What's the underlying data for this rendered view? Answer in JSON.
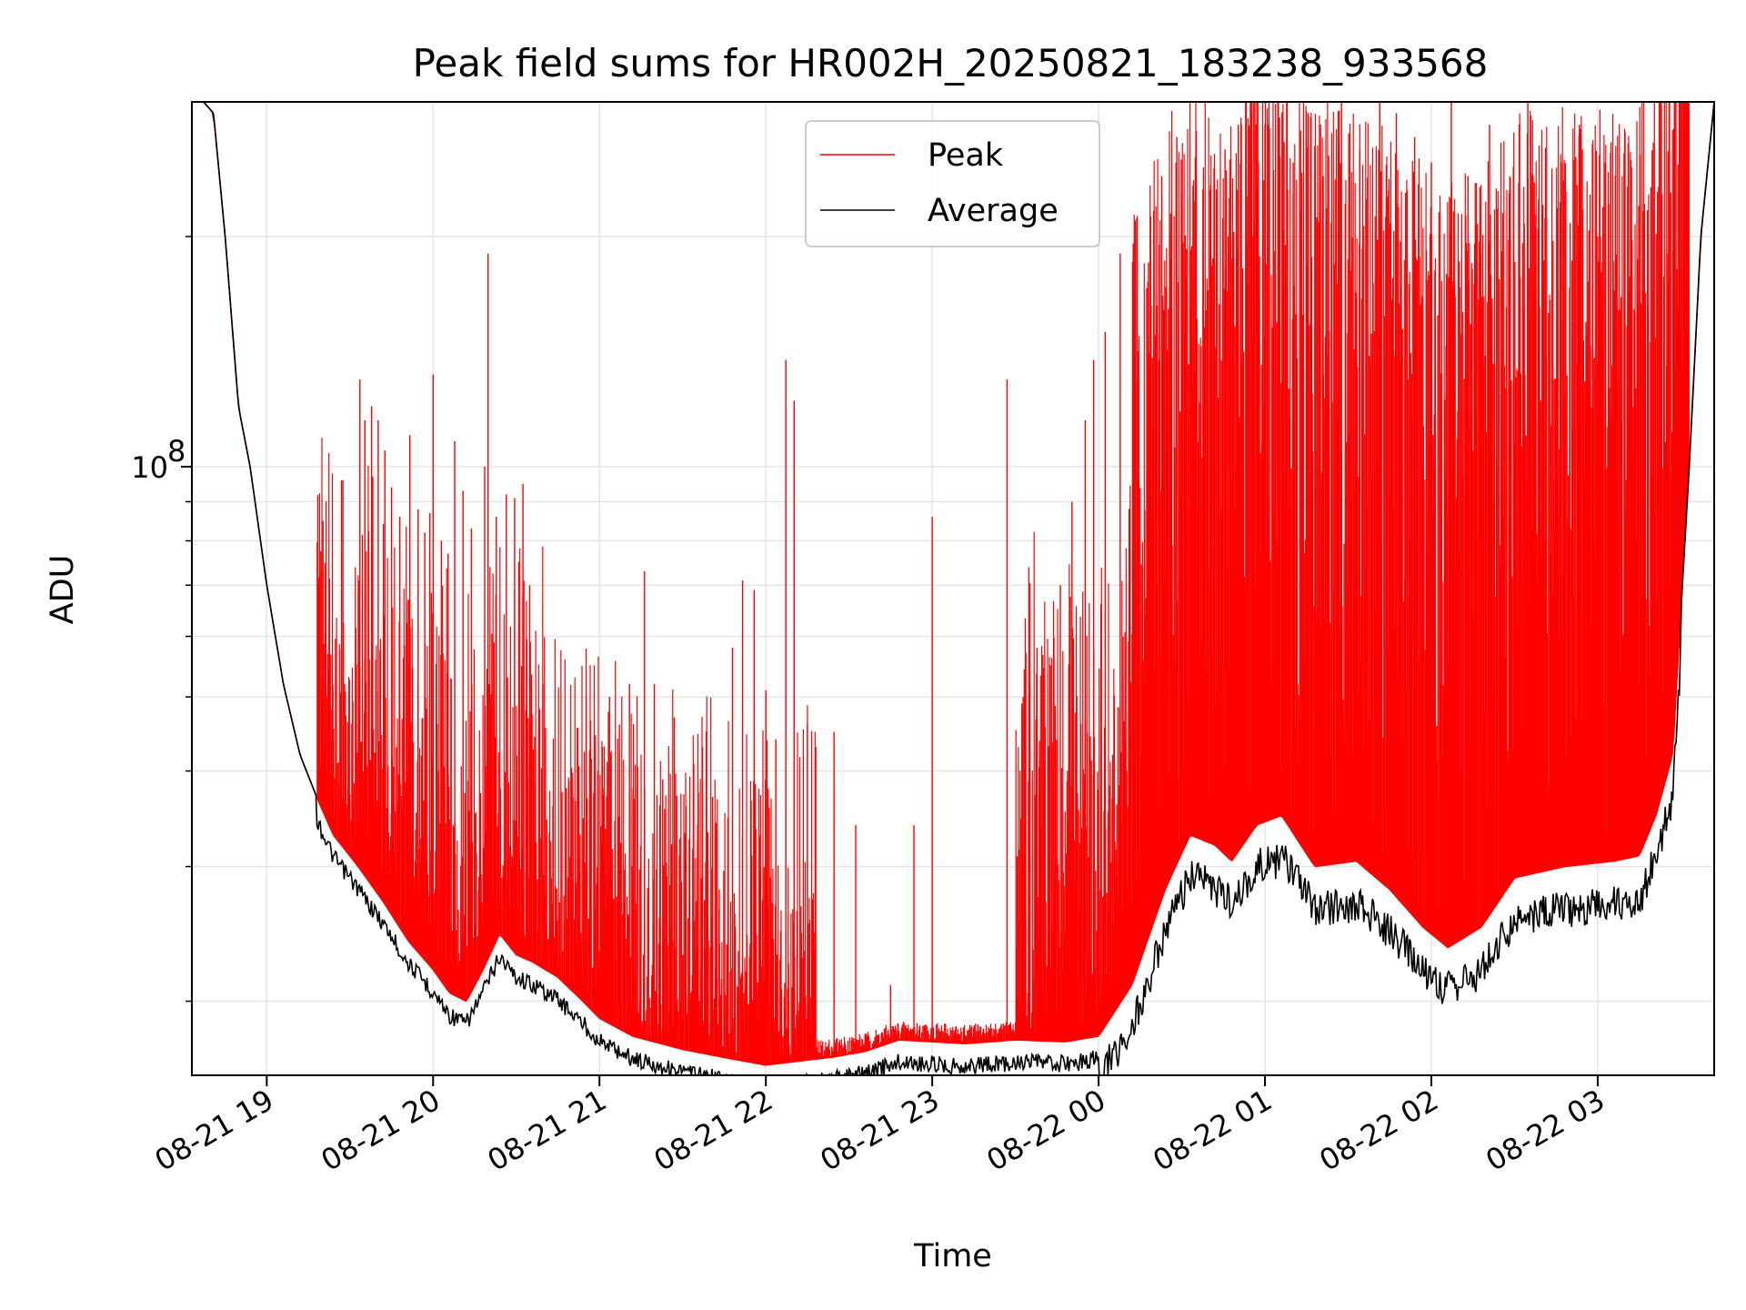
{
  "chart_data": {
    "type": "line",
    "title": "Peak field sums for HR002H_20250821_183238_933568",
    "xlabel": "Time",
    "ylabel": "ADU",
    "yscale": "log",
    "grid": true,
    "legend_placement": "upper center",
    "x_ticks": [
      "08-21 19",
      "08-21 20",
      "08-21 21",
      "08-21 22",
      "08-21 23",
      "08-22 00",
      "08-22 01",
      "08-22 02",
      "08-22 03"
    ],
    "y_ticks": [
      {
        "label": "10",
        "exponent": "8"
      }
    ],
    "series": [
      {
        "name": "Peak",
        "color": "#ff0000",
        "baseline_hours": [
          18.55,
          18.62,
          18.68,
          18.75,
          18.83,
          18.9,
          19.0,
          19.1,
          19.2,
          19.3,
          19.4,
          19.55,
          19.7,
          19.85,
          20.0,
          20.1,
          20.2,
          20.3,
          20.4,
          20.5,
          20.6,
          20.75,
          20.9,
          21.0,
          21.2,
          21.5,
          21.8,
          22.0,
          22.2,
          22.4,
          22.6,
          22.8,
          23.0,
          23.2,
          23.5,
          23.8,
          24.0,
          24.2,
          24.4,
          24.55,
          24.7,
          24.8,
          24.95,
          25.1,
          25.3,
          25.55,
          25.75,
          25.95,
          26.1,
          26.3,
          26.5,
          26.8,
          27.1,
          27.25,
          27.35,
          27.45,
          27.55,
          27.62,
          27.7
        ],
        "baseline_values": [
          300000000,
          300000000,
          290000000,
          200000000,
          120000000,
          100000000,
          70000000,
          52000000,
          42000000,
          37000000,
          33000000,
          30000000,
          27000000,
          24000000,
          22000000,
          20500000,
          20000000,
          22000000,
          24500000,
          23000000,
          22500000,
          21500000,
          20000000,
          19000000,
          18000000,
          17300000,
          16800000,
          16500000,
          16700000,
          16900000,
          17200000,
          17800000,
          17700000,
          17600000,
          17800000,
          17700000,
          18000000,
          21000000,
          28000000,
          33000000,
          32000000,
          30500000,
          34000000,
          35000000,
          30000000,
          30500000,
          28000000,
          25000000,
          23500000,
          25000000,
          29000000,
          30000000,
          30500000,
          31000000,
          35000000,
          42000000,
          100000000,
          200000000,
          300000000
        ],
        "spikes": [
          [
            19.34,
            49000000
          ],
          [
            19.45,
            96000000
          ],
          [
            19.56,
            130000000
          ],
          [
            19.59,
            115000000
          ],
          [
            19.63,
            120000000
          ],
          [
            19.67,
            115000000
          ],
          [
            19.71,
            105000000
          ],
          [
            19.75,
            94000000
          ],
          [
            19.8,
            86000000
          ],
          [
            19.86,
            110000000
          ],
          [
            19.91,
            88000000
          ],
          [
            19.95,
            82000000
          ],
          [
            19.98,
            87000000
          ],
          [
            20.0,
            132000000
          ],
          [
            20.05,
            80000000
          ],
          [
            20.09,
            77000000
          ],
          [
            20.13,
            108000000
          ],
          [
            20.18,
            93000000
          ],
          [
            20.23,
            83000000
          ],
          [
            20.31,
            100000000
          ],
          [
            20.33,
            190000000
          ],
          [
            20.38,
            86000000
          ],
          [
            20.44,
            92000000
          ],
          [
            20.49,
            91000000
          ],
          [
            20.54,
            95000000
          ],
          [
            20.58,
            70000000
          ],
          [
            20.66,
            52000000
          ],
          [
            20.72,
            36000000
          ],
          [
            20.8,
            38000000
          ],
          [
            20.88,
            28000000
          ],
          [
            20.92,
            50000000
          ],
          [
            21.02,
            38000000
          ],
          [
            21.06,
            50000000
          ],
          [
            21.12,
            46000000
          ],
          [
            21.18,
            52000000
          ],
          [
            21.27,
            73000000
          ],
          [
            21.33,
            52000000
          ],
          [
            21.38,
            39000000
          ],
          [
            21.45,
            47000000
          ],
          [
            21.52,
            36000000
          ],
          [
            21.59,
            34000000
          ],
          [
            21.68,
            37000000
          ],
          [
            21.72,
            28000000
          ],
          [
            21.8,
            58000000
          ],
          [
            21.86,
            71000000
          ],
          [
            21.93,
            69000000
          ],
          [
            22.0,
            51000000
          ],
          [
            22.06,
            44000000
          ],
          [
            22.12,
            138000000
          ],
          [
            22.17,
            122000000
          ],
          [
            22.25,
            46000000
          ],
          [
            22.3,
            43000000
          ],
          [
            22.41,
            45000000
          ],
          [
            22.54,
            34000000
          ],
          [
            22.75,
            21000000
          ],
          [
            22.89,
            34000000
          ],
          [
            23.0,
            86000000
          ],
          [
            23.45,
            130000000
          ],
          [
            23.54,
            48000000
          ],
          [
            23.63,
            58000000
          ],
          [
            23.71,
            55000000
          ],
          [
            23.77,
            70000000
          ],
          [
            23.84,
            90000000
          ],
          [
            23.92,
            115000000
          ],
          [
            23.97,
            138000000
          ],
          [
            24.04,
            150000000
          ],
          [
            24.13,
            190000000
          ],
          [
            24.22,
            210000000
          ],
          [
            24.3,
            185000000
          ],
          [
            24.38,
            240000000
          ],
          [
            24.47,
            270000000
          ],
          [
            24.58,
            200000000
          ],
          [
            24.67,
            230000000
          ],
          [
            24.76,
            260000000
          ],
          [
            24.84,
            280000000
          ],
          [
            24.93,
            200000000
          ],
          [
            25.0,
            280000000
          ],
          [
            25.08,
            300000000
          ],
          [
            25.17,
            250000000
          ],
          [
            25.26,
            290000000
          ],
          [
            25.35,
            240000000
          ],
          [
            25.46,
            300000000
          ],
          [
            25.57,
            260000000
          ],
          [
            25.69,
            300000000
          ],
          [
            25.79,
            290000000
          ],
          [
            25.9,
            270000000
          ],
          [
            26.0,
            250000000
          ],
          [
            26.12,
            300000000
          ],
          [
            26.22,
            240000000
          ],
          [
            26.35,
            280000000
          ],
          [
            26.47,
            230000000
          ],
          [
            26.58,
            300000000
          ],
          [
            26.67,
            220000000
          ],
          [
            26.78,
            250000000
          ],
          [
            26.89,
            280000000
          ],
          [
            27.0,
            200000000
          ],
          [
            27.1,
            170000000
          ],
          [
            27.19,
            145000000
          ],
          [
            27.27,
            170000000
          ],
          [
            27.33,
            170000000
          ],
          [
            27.42,
            190000000
          ],
          [
            27.5,
            150000000
          ]
        ]
      },
      {
        "name": "Average",
        "color": "#000000",
        "note_data_units": "tracks Peak baseline, slightly below"
      }
    ]
  }
}
